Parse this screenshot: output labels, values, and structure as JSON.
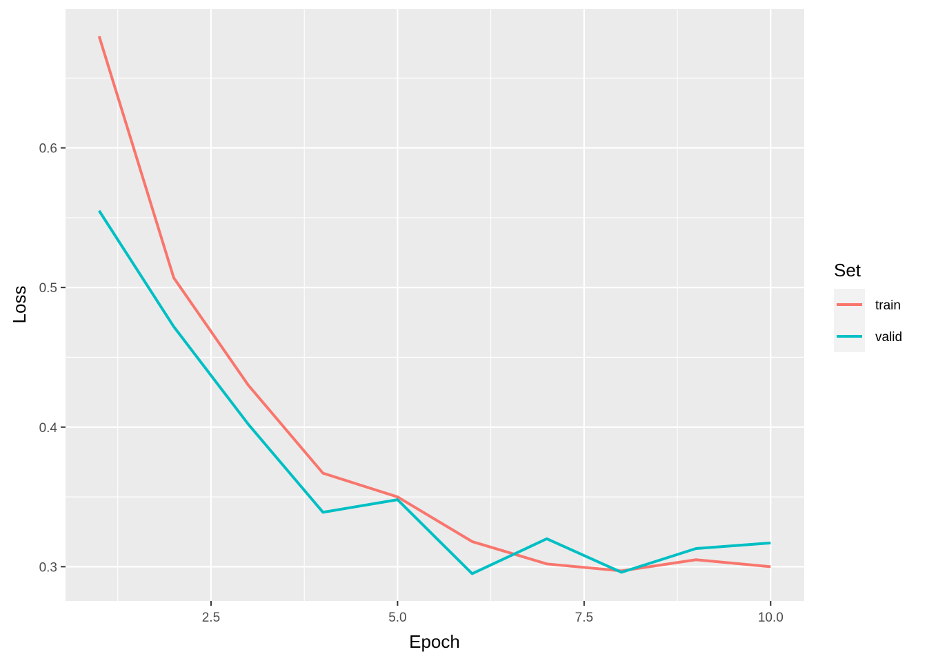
{
  "chart_data": {
    "type": "line",
    "title": "",
    "xlabel": "Epoch",
    "ylabel": "Loss",
    "xlim": [
      0.55,
      10.45
    ],
    "ylim": [
      0.2755,
      0.6995
    ],
    "x_ticks": [
      2.5,
      5.0,
      7.5,
      10.0
    ],
    "x_tick_labels": [
      "2.5",
      "5.0",
      "7.5",
      "10.0"
    ],
    "y_ticks": [
      0.3,
      0.4,
      0.5,
      0.6
    ],
    "y_tick_labels": [
      "0.3",
      "0.4",
      "0.5",
      "0.6"
    ],
    "grid": true,
    "legend": {
      "title": "Set",
      "placement": "right"
    },
    "x": [
      1,
      2,
      3,
      4,
      5,
      6,
      7,
      8,
      9,
      10
    ],
    "series": [
      {
        "name": "train",
        "color": "#F8766D",
        "values": [
          0.68,
          0.507,
          0.43,
          0.367,
          0.35,
          0.318,
          0.302,
          0.297,
          0.305,
          0.3
        ]
      },
      {
        "name": "valid",
        "color": "#00BFC4",
        "values": [
          0.555,
          0.472,
          0.402,
          0.339,
          0.348,
          0.295,
          0.32,
          0.296,
          0.313,
          0.317
        ]
      }
    ]
  },
  "style": {
    "panel_background": "#EBEBEB",
    "grid_major_color": "#FFFFFF",
    "grid_minor_color": "#FFFFFF",
    "legend_key_background": "#F2F2F2"
  }
}
